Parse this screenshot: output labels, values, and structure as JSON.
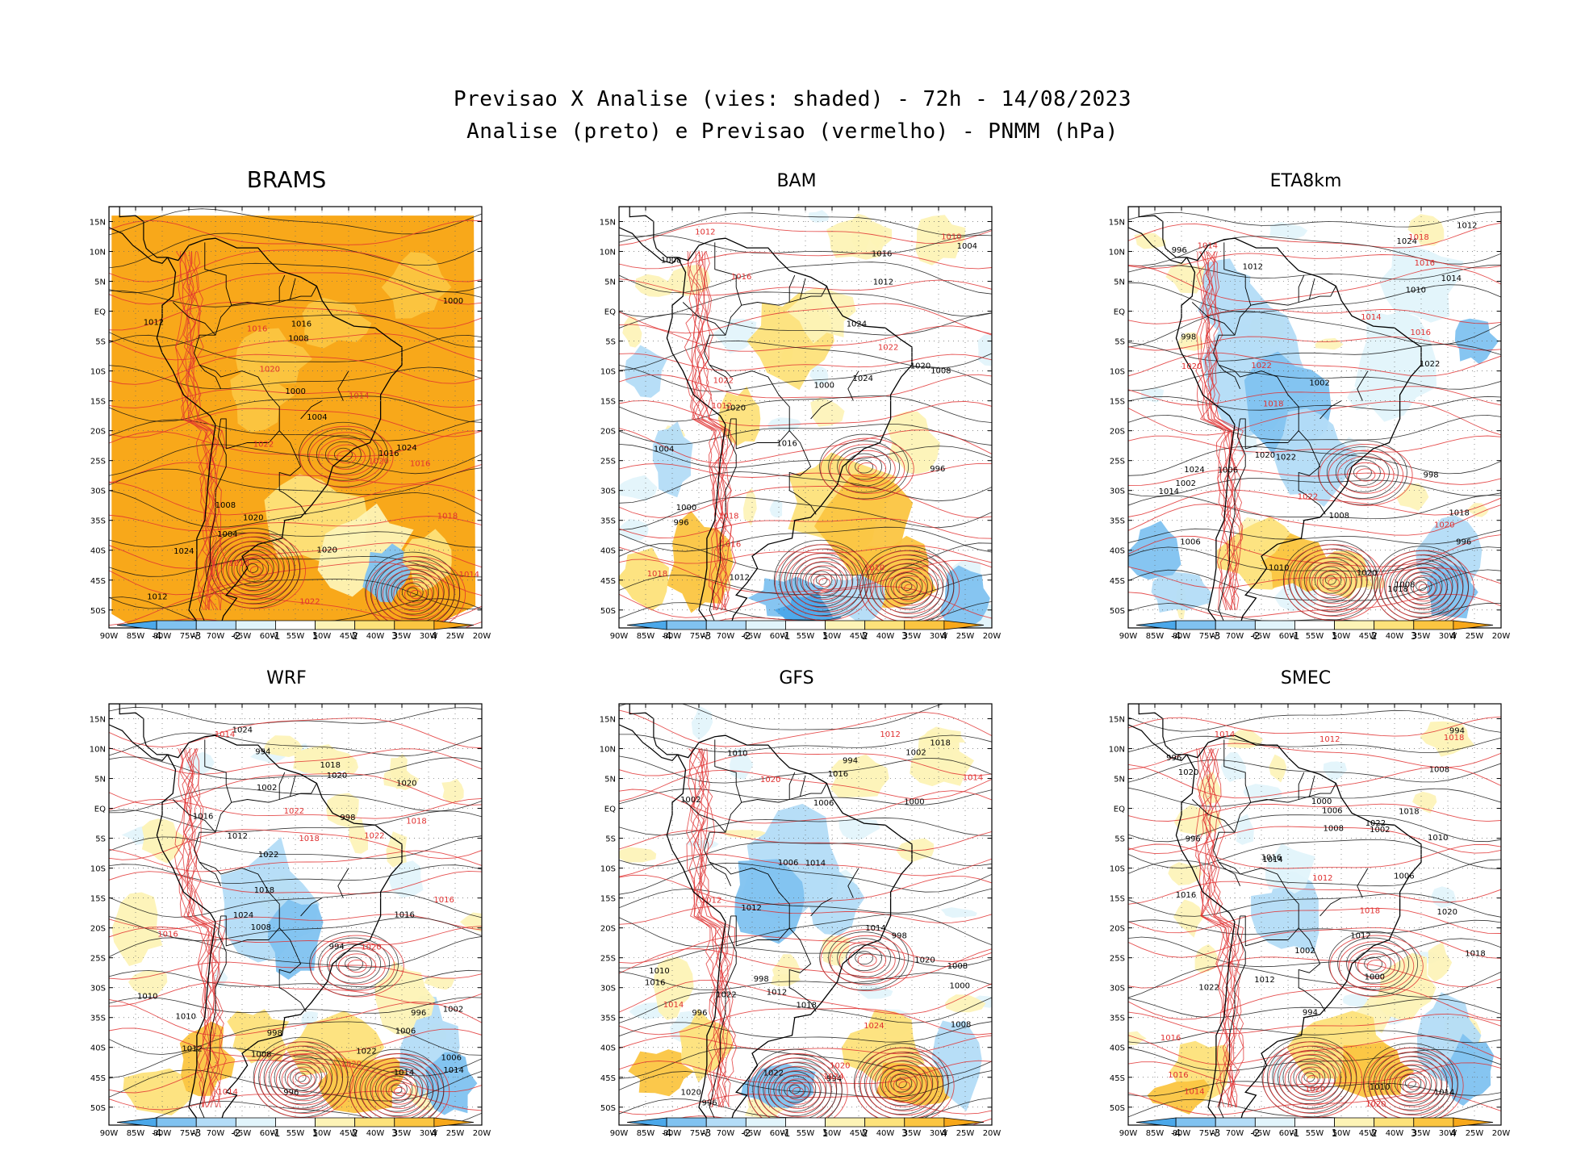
{
  "header": {
    "title_line1": "Previsao X Analise (vies: shaded) - 72h - 14/08/2023",
    "title_line2": "Analise (preto) e Previsao (vermelho) - PNMM (hPa)"
  },
  "axes": {
    "lat_labels": [
      "15N",
      "10N",
      "5N",
      "EQ",
      "5S",
      "10S",
      "15S",
      "20S",
      "25S",
      "30S",
      "35S",
      "40S",
      "45S",
      "50S"
    ],
    "lon_labels": [
      "90W",
      "85W",
      "80W",
      "75W",
      "70W",
      "65W",
      "60W",
      "55W",
      "50W",
      "45W",
      "40W",
      "35W",
      "30W",
      "25W",
      "20W"
    ]
  },
  "colorbar": {
    "labels": [
      "-4",
      "-3",
      "-2",
      "-1",
      "1",
      "2",
      "3",
      "4"
    ],
    "colors": [
      "#4ba8ea",
      "#80c2f0",
      "#b3dcf7",
      "#e1f4fb",
      "#ffffff",
      "#fdf3b6",
      "#fde27a",
      "#fbc541",
      "#f8a81a"
    ]
  },
  "colors": {
    "analysis_contour": "#000000",
    "forecast_contour": "#e03030",
    "land_outline": "#000000"
  },
  "panels": [
    {
      "id": "brams",
      "name": "BRAMS",
      "contour_labels": [
        {
          "text": "1008",
          "c": "k"
        },
        {
          "text": "1012",
          "c": "k"
        },
        {
          "text": "1016",
          "c": "k"
        },
        {
          "text": "1020",
          "c": "k"
        },
        {
          "text": "1024",
          "c": "k"
        },
        {
          "text": "1004",
          "c": "k"
        },
        {
          "text": "1000",
          "c": "k"
        },
        {
          "text": "1014",
          "c": "r"
        },
        {
          "text": "1016",
          "c": "r"
        },
        {
          "text": "1020",
          "c": "r"
        },
        {
          "text": "1022",
          "c": "r"
        },
        {
          "text": "1018",
          "c": "r"
        }
      ]
    },
    {
      "id": "bam",
      "name": "BAM",
      "contour_labels": [
        {
          "text": "1012",
          "c": "k"
        },
        {
          "text": "1016",
          "c": "k"
        },
        {
          "text": "1020",
          "c": "k"
        },
        {
          "text": "1024",
          "c": "k"
        },
        {
          "text": "1008",
          "c": "k"
        },
        {
          "text": "1004",
          "c": "k"
        },
        {
          "text": "1000",
          "c": "k"
        },
        {
          "text": "996",
          "c": "k"
        },
        {
          "text": "1012",
          "c": "r"
        },
        {
          "text": "1016",
          "c": "r"
        },
        {
          "text": "1022",
          "c": "r"
        },
        {
          "text": "1018",
          "c": "r"
        },
        {
          "text": "1010",
          "c": "r"
        }
      ]
    },
    {
      "id": "eta8km",
      "name": "ETA8km",
      "contour_labels": [
        {
          "text": "1012",
          "c": "k"
        },
        {
          "text": "1010",
          "c": "k"
        },
        {
          "text": "1014",
          "c": "k"
        },
        {
          "text": "1018",
          "c": "k"
        },
        {
          "text": "1020",
          "c": "k"
        },
        {
          "text": "1022",
          "c": "k"
        },
        {
          "text": "1024",
          "c": "k"
        },
        {
          "text": "1006",
          "c": "k"
        },
        {
          "text": "1002",
          "c": "k"
        },
        {
          "text": "998",
          "c": "k"
        },
        {
          "text": "996",
          "c": "k"
        },
        {
          "text": "1008",
          "c": "k"
        },
        {
          "text": "1014",
          "c": "r"
        },
        {
          "text": "1016",
          "c": "r"
        },
        {
          "text": "1018",
          "c": "r"
        },
        {
          "text": "1020",
          "c": "r"
        },
        {
          "text": "1022",
          "c": "r"
        }
      ]
    },
    {
      "id": "wrf",
      "name": "WRF",
      "contour_labels": [
        {
          "text": "1012",
          "c": "k"
        },
        {
          "text": "1010",
          "c": "k"
        },
        {
          "text": "1014",
          "c": "k"
        },
        {
          "text": "1016",
          "c": "k"
        },
        {
          "text": "1018",
          "c": "k"
        },
        {
          "text": "1020",
          "c": "k"
        },
        {
          "text": "1022",
          "c": "k"
        },
        {
          "text": "1024",
          "c": "k"
        },
        {
          "text": "1006",
          "c": "k"
        },
        {
          "text": "1002",
          "c": "k"
        },
        {
          "text": "998",
          "c": "k"
        },
        {
          "text": "996",
          "c": "k"
        },
        {
          "text": "994",
          "c": "k"
        },
        {
          "text": "1008",
          "c": "k"
        },
        {
          "text": "1014",
          "c": "r"
        },
        {
          "text": "1016",
          "c": "r"
        },
        {
          "text": "1018",
          "c": "r"
        },
        {
          "text": "1020",
          "c": "r"
        },
        {
          "text": "1022",
          "c": "r"
        }
      ]
    },
    {
      "id": "gfs",
      "name": "GFS",
      "contour_labels": [
        {
          "text": "1012",
          "c": "k"
        },
        {
          "text": "1014",
          "c": "k"
        },
        {
          "text": "1016",
          "c": "k"
        },
        {
          "text": "1018",
          "c": "k"
        },
        {
          "text": "1020",
          "c": "k"
        },
        {
          "text": "1022",
          "c": "k"
        },
        {
          "text": "1010",
          "c": "k"
        },
        {
          "text": "1006",
          "c": "k"
        },
        {
          "text": "1002",
          "c": "k"
        },
        {
          "text": "1000",
          "c": "k"
        },
        {
          "text": "998",
          "c": "k"
        },
        {
          "text": "996",
          "c": "k"
        },
        {
          "text": "994",
          "c": "k"
        },
        {
          "text": "1008",
          "c": "k"
        },
        {
          "text": "1012",
          "c": "r"
        },
        {
          "text": "1014",
          "c": "r"
        },
        {
          "text": "1020",
          "c": "r"
        },
        {
          "text": "1024",
          "c": "r"
        }
      ]
    },
    {
      "id": "smec",
      "name": "SMEC",
      "contour_labels": [
        {
          "text": "1012",
          "c": "k"
        },
        {
          "text": "1014",
          "c": "k"
        },
        {
          "text": "1016",
          "c": "k"
        },
        {
          "text": "1018",
          "c": "k"
        },
        {
          "text": "1020",
          "c": "k"
        },
        {
          "text": "1022",
          "c": "k"
        },
        {
          "text": "1010",
          "c": "k"
        },
        {
          "text": "1006",
          "c": "k"
        },
        {
          "text": "1002",
          "c": "k"
        },
        {
          "text": "1000",
          "c": "k"
        },
        {
          "text": "996",
          "c": "k"
        },
        {
          "text": "994",
          "c": "k"
        },
        {
          "text": "1008",
          "c": "k"
        },
        {
          "text": "1012",
          "c": "r"
        },
        {
          "text": "1014",
          "c": "r"
        },
        {
          "text": "1016",
          "c": "r"
        },
        {
          "text": "1018",
          "c": "r"
        },
        {
          "text": "1020",
          "c": "r"
        }
      ]
    }
  ]
}
